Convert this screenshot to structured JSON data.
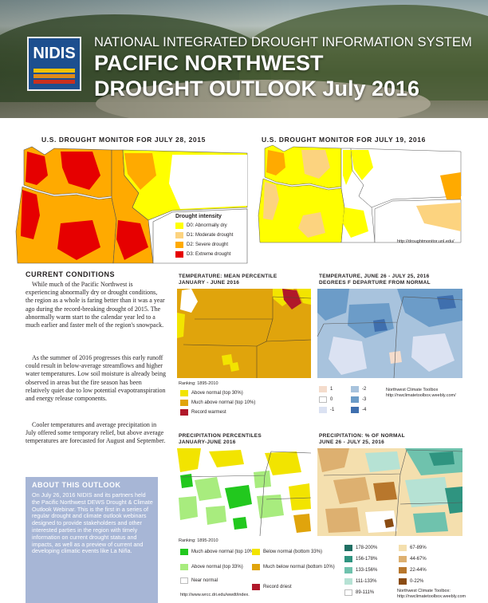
{
  "header": {
    "logo_text": "NIDIS",
    "org_name": "NATIONAL INTEGRATED DROUGHT INFORMATION SYSTEM",
    "title_line1": "PACIFIC NORTHWEST",
    "title_line2": "DROUGHT OUTLOOK July 2016"
  },
  "drought_monitor": {
    "left_title": "U.S. DROUGHT MONITOR FOR JULY 28, 2015",
    "right_title": "U.S. DROUGHT MONITOR FOR JULY 19, 2016",
    "legend_title": "Drought intensity",
    "legend": [
      {
        "label": "D0: Abnormally dry",
        "color": "#ffff00"
      },
      {
        "label": "D1: Moderate drought",
        "color": "#fcd37f"
      },
      {
        "label": "D2: Severe drought",
        "color": "#ffaa00"
      },
      {
        "label": "D3: Extreme drought",
        "color": "#e60000"
      }
    ],
    "source": "http://droughtmonitor.unl.edu/"
  },
  "current_conditions": {
    "heading": "CURRENT CONDITIONS",
    "paragraph1": "While much of the Pacific Northwest is experiencing abnormally dry or drought conditions, the region as a whole is faring better than it was a year ago during the record-breaking drought of 2015. The abnormally warm start to the calendar year led to a much earlier and faster melt of the region's snowpack.",
    "paragraph2": "As the summer of 2016 progresses this early runoff could result in below-average streamflows and higher water temperatures. Low soil moisture is already being observed in areas but the fire season has been relatively quiet due to low potential evapotranspiration and energy release components.",
    "paragraph3": "Cooler temperatures and average precipitation in July offered some temporary relief, but above average temperatures are forecasted for August and September."
  },
  "about": {
    "heading": "ABOUT THIS OUTLOOK",
    "text": "On July 26, 2016 NIDIS and its partners held the Pacific Northwest DEWS Drought & Climate Outlook Webinar. This is the first in a series of regular drought and climate outlook webinars designed to provide stakeholders and other interested parties in the region with timely information on current drought status and impacts, as well as a preview of current and developing climatic events like La Niña."
  },
  "temp_percentile": {
    "title": "TEMPERATURE: MEAN PERCENTILE",
    "subtitle": "JANUARY - JUNE 2016",
    "ranking": "Ranking: 1895-2010",
    "legend": [
      {
        "label": "Above normal (top 30%)",
        "color": "#f2e400"
      },
      {
        "label": "Much above normal (top 10%)",
        "color": "#e0a40c"
      },
      {
        "label": "Record warmest",
        "color": "#b0182a"
      }
    ]
  },
  "temp_departure": {
    "title": "TEMPERATURE, JUNE 26 - JULY 25, 2016",
    "subtitle": "DEGREES F DEPARTURE FROM NORMAL",
    "legend": [
      {
        "label": "1",
        "color": "#f4dccc"
      },
      {
        "label": "0",
        "color": "#ffffff"
      },
      {
        "label": "-1",
        "color": "#dbe2f2"
      },
      {
        "label": "-2",
        "color": "#a8c3dd"
      },
      {
        "label": "-3",
        "color": "#6c9cc8"
      },
      {
        "label": "-4",
        "color": "#3f6fae"
      }
    ],
    "source": "Northwest Climate Toolbox http://nwclimatetoolbox.weebly.com/"
  },
  "precip_percentile": {
    "title": "PRECIPITATION PERCENTILES",
    "subtitle": "JANUARY-JUNE 2016",
    "ranking": "Ranking: 1895-2010",
    "legend": [
      {
        "label": "Much above normal (top 10%)",
        "color": "#22c81e"
      },
      {
        "label": "Above normal (top 33%)",
        "color": "#a8ec7e"
      },
      {
        "label": "Near normal",
        "color": "#ffffff"
      },
      {
        "label": "Below normal (bottom 33%)",
        "color": "#f2e400"
      },
      {
        "label": "Much below normal (bottom 10%)",
        "color": "#e0a40c"
      },
      {
        "label": "Record driest",
        "color": "#b0182a"
      }
    ],
    "source": "http://www.wrcc.dri.edu/wwdt/index."
  },
  "precip_normal": {
    "title": "PRECIPITATION: % OF NORMAL",
    "subtitle": "JUNE 26 - JULY 25, 2016",
    "legend": [
      {
        "label": "178-200%",
        "color": "#1f6f63"
      },
      {
        "label": "156-178%",
        "color": "#2f9480"
      },
      {
        "label": "133-156%",
        "color": "#6fc2ad"
      },
      {
        "label": "111-133%",
        "color": "#b6e2d4"
      },
      {
        "label": "89-111%",
        "color": "#ffffff"
      },
      {
        "label": "67-89%",
        "color": "#f4dfae"
      },
      {
        "label": "44-67%",
        "color": "#ddb070"
      },
      {
        "label": "22-44%",
        "color": "#b8772c"
      },
      {
        "label": "0-22%",
        "color": "#8a4b12"
      }
    ],
    "source": "Northwest Climate Toolbox: http://nwclimatetoolbox.weebly.com"
  },
  "colors": {
    "about_box": "#a7b6d6",
    "logo_blue": "#1d4f8f"
  }
}
